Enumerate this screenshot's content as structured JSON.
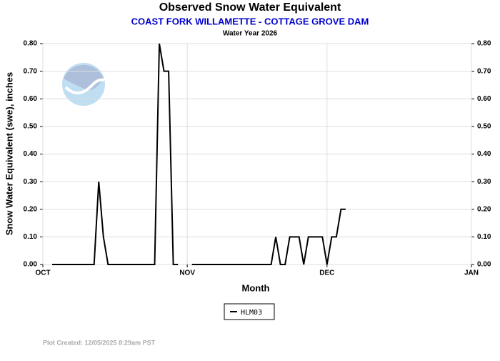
{
  "chart_data": {
    "type": "line",
    "title": "Observed Snow Water Equivalent",
    "subtitle": "COAST FORK WILLAMETTE - COTTAGE GROVE DAM",
    "subtitle2": "Water Year 2026",
    "ylabel": "Snow Water Equivalent (swe),  inches",
    "xlabel": "Month",
    "footer": "Plot Created: 12/05/2025 8:29am PST",
    "xlim": [
      0,
      92
    ],
    "xticks": [
      {
        "value": 0,
        "label": "OCT"
      },
      {
        "value": 31,
        "label": "NOV"
      },
      {
        "value": 61,
        "label": "DEC"
      },
      {
        "value": 92,
        "label": "JAN"
      }
    ],
    "ylim": [
      0,
      0.8
    ],
    "yticks": [
      {
        "value": 0,
        "label": "0.00"
      },
      {
        "value": 0.1,
        "label": "0.10"
      },
      {
        "value": 0.2,
        "label": "0.20"
      },
      {
        "value": 0.3,
        "label": "0.30"
      },
      {
        "value": 0.4,
        "label": "0.40"
      },
      {
        "value": 0.5,
        "label": "0.50"
      },
      {
        "value": 0.6,
        "label": "0.60"
      },
      {
        "value": 0.7,
        "label": "0.70"
      },
      {
        "value": 0.8,
        "label": "0.80"
      }
    ],
    "grid": true,
    "legend": "bottom",
    "x": [
      2,
      3,
      4,
      5,
      6,
      7,
      8,
      9,
      10,
      11,
      12,
      13,
      14,
      15,
      16,
      17,
      18,
      19,
      20,
      21,
      22,
      23,
      24,
      25,
      26,
      27,
      28,
      29,
      30,
      31,
      32,
      33,
      34,
      35,
      36,
      37,
      38,
      39,
      40,
      41,
      42,
      43,
      44,
      45,
      46,
      47,
      48,
      49,
      50,
      51,
      52,
      53,
      54,
      55,
      56,
      57,
      58,
      59,
      60,
      61,
      62,
      63,
      64,
      65
    ],
    "series": [
      {
        "name": "HLM03",
        "color": "#000000",
        "values": [
          0,
          0,
          0,
          0,
          0,
          0,
          0,
          0,
          0,
          0,
          0.3,
          0.1,
          0,
          0,
          0,
          0,
          0,
          0,
          0,
          0,
          0,
          0,
          0,
          0.8,
          0.7,
          0.7,
          0,
          0,
          null,
          null,
          0,
          0,
          0,
          0,
          0,
          0,
          0,
          0,
          0,
          0,
          0,
          0,
          0,
          0,
          0,
          0,
          0,
          0,
          0.1,
          0,
          0,
          0.1,
          0.1,
          0.1,
          0,
          0.1,
          0.1,
          0.1,
          0.1,
          0,
          0.1,
          0.1,
          0.2,
          0.2
        ]
      }
    ]
  }
}
